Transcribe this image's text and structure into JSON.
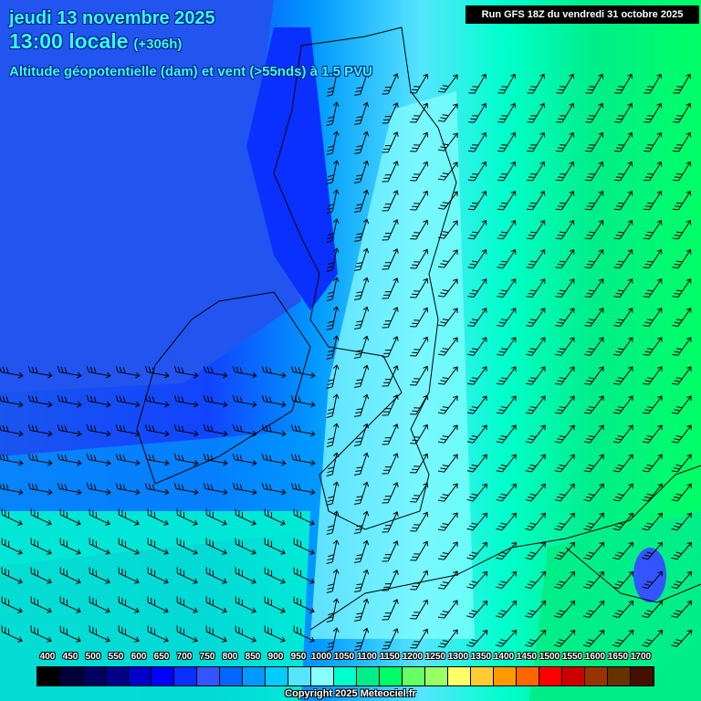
{
  "header": {
    "date": "jeudi 13 novembre 2025",
    "time": "13:00 locale",
    "lead": "(+306h)",
    "parameter": "Altitude géopotentielle (dam) et vent (>55nds) à 1.5 PVU",
    "run": "Run GFS 18Z du vendredi 31 octobre 2025"
  },
  "legend": {
    "labels": [
      "400",
      "450",
      "500",
      "550",
      "600",
      "650",
      "700",
      "750",
      "800",
      "850",
      "900",
      "950",
      "1000",
      "1050",
      "1100",
      "1150",
      "1200",
      "1250",
      "1300",
      "1350",
      "1400",
      "1450",
      "1500",
      "1550",
      "1600",
      "1650",
      "1700"
    ],
    "colors": [
      "#000000",
      "#00003a",
      "#000060",
      "#000088",
      "#0000c8",
      "#0000ff",
      "#0a30ff",
      "#3355ff",
      "#0066ff",
      "#0099ff",
      "#00ccff",
      "#55e5ff",
      "#88ffff",
      "#00ffcc",
      "#00ee88",
      "#00ff66",
      "#66ff66",
      "#99ff66",
      "#ffff66",
      "#ffcc33",
      "#ff9900",
      "#ff6600",
      "#ff0000",
      "#cc0000",
      "#993300",
      "#663300",
      "#441100"
    ]
  },
  "copyright": "Copyright 2025 Meteociel.fr"
}
